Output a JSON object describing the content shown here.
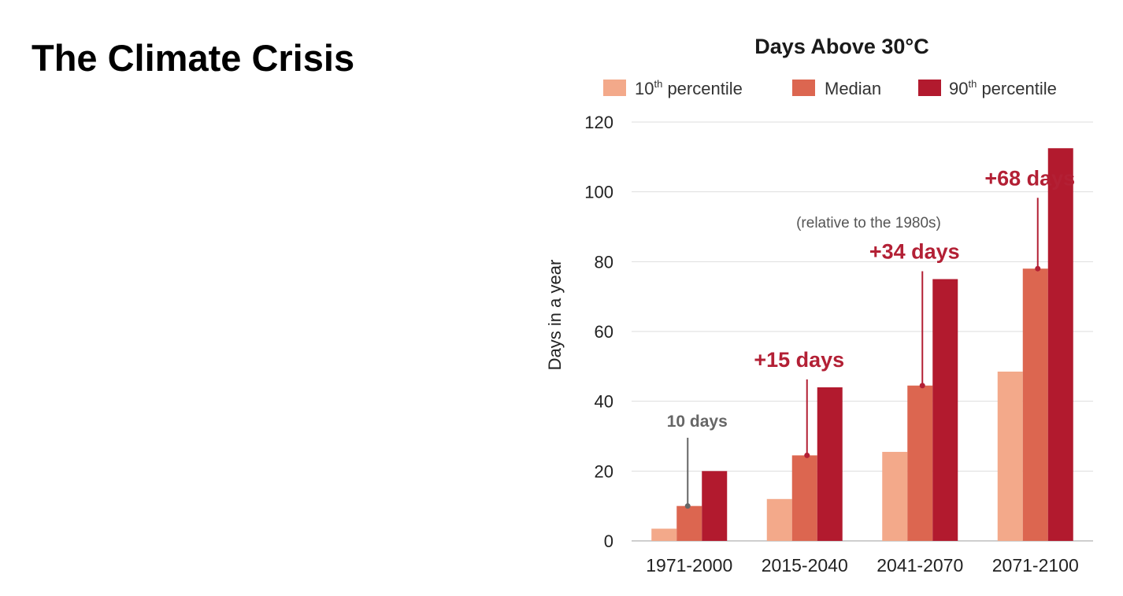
{
  "slide": {
    "title": "The Climate Crisis"
  },
  "chart_data": {
    "type": "bar",
    "title": "Days Above 30°C",
    "ylabel": "Days in a year",
    "xlabel": "",
    "ylim": [
      0,
      120
    ],
    "yticks": [
      0,
      20,
      40,
      60,
      80,
      100,
      120
    ],
    "categories": [
      "1971-2000",
      "2015-2040",
      "2041-2070",
      "2071-2100"
    ],
    "series": [
      {
        "name": "10th percentile",
        "color": "#f3a98a",
        "values": [
          3.5,
          12,
          25.5,
          48.5
        ]
      },
      {
        "name": "Median",
        "color": "#dc6650",
        "values": [
          10,
          24.5,
          44.5,
          78
        ]
      },
      {
        "name": "90th percentile",
        "color": "#b21a2e",
        "values": [
          20,
          44,
          75,
          112.5
        ]
      }
    ],
    "legend": {
      "placement": "top",
      "items": [
        {
          "main": "10",
          "sup": "th",
          "rest": " percentile"
        },
        {
          "main": "Median",
          "sup": "",
          "rest": ""
        },
        {
          "main": "90",
          "sup": "th",
          "rest": " percentile"
        }
      ]
    },
    "grid": true,
    "annotations": [
      {
        "text": "10 days",
        "category": "1971-2000",
        "color": "#666666"
      },
      {
        "text": "+15 days",
        "category": "2015-2040",
        "color": "#b32035"
      },
      {
        "text": "+34 days",
        "category": "2041-2070",
        "color": "#b32035"
      },
      {
        "text": "+68 days",
        "category": "2071-2100",
        "color": "#b32035"
      }
    ],
    "note": "(relative to the 1980s)"
  }
}
